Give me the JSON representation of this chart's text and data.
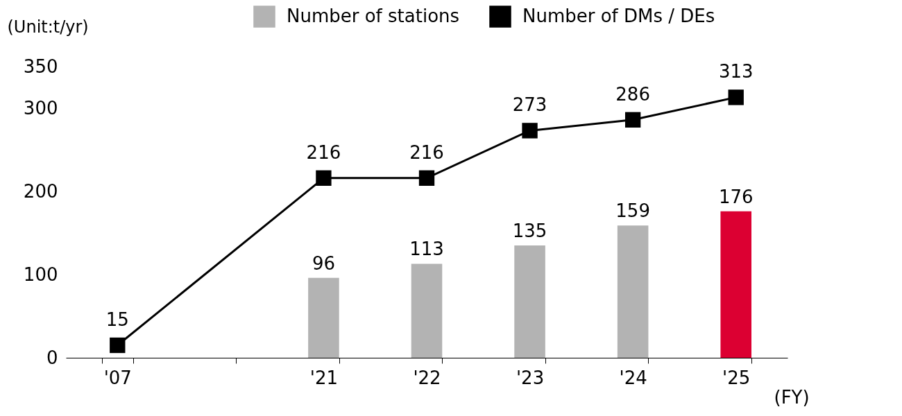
{
  "chart_data": {
    "type": "bar",
    "ylabel": "(Unit:t/yr)",
    "xlabel": "(FY)",
    "categories": [
      "'07",
      null,
      "'21",
      "'22",
      "'23",
      "'24",
      "'25"
    ],
    "series": [
      {
        "name": "Number of stations",
        "color": "#b3b3b3",
        "colors": [
          "#b3b3b3",
          "#b3b3b3",
          "#b3b3b3",
          "#b3b3b3",
          "#b3b3b3",
          "#b3b3b3",
          "#dc0032"
        ],
        "values": [
          null,
          null,
          96,
          113,
          135,
          159,
          176
        ]
      },
      {
        "name": "Number of DMs / DEs",
        "type": "line",
        "color": "#000000",
        "values": [
          15,
          null,
          216,
          216,
          273,
          286,
          313
        ]
      }
    ],
    "ylim": [
      0,
      350
    ],
    "yticks": [
      0,
      100,
      200,
      300,
      350
    ],
    "data_labels": true,
    "legend": "top right",
    "marker": "square",
    "line_style": "solid"
  }
}
